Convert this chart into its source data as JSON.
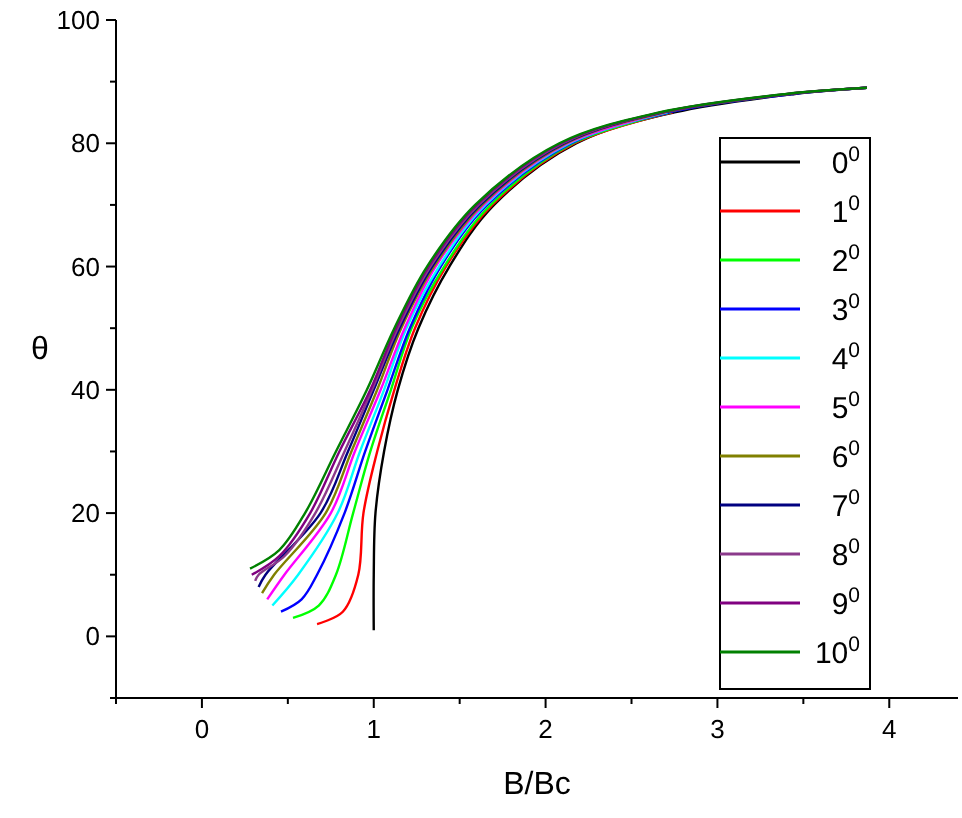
{
  "chart_data": {
    "type": "line",
    "xlabel": "B/Bc",
    "ylabel": "θ",
    "xlim": [
      -0.5,
      4.4
    ],
    "ylim": [
      -10,
      100
    ],
    "xticks": [
      {
        "value": -0.5,
        "label": null
      },
      0,
      {
        "value": 0.5,
        "label": null
      },
      1,
      {
        "value": 1.5,
        "label": null
      },
      2,
      {
        "value": 2.5,
        "label": null
      },
      3,
      {
        "value": 3.5,
        "label": null
      },
      4
    ],
    "yticks": [
      {
        "value": -10,
        "label": null
      },
      0,
      {
        "value": 10,
        "label": null
      },
      20,
      {
        "value": 30,
        "label": null
      },
      40,
      {
        "value": 50,
        "label": null
      },
      60,
      {
        "value": 70,
        "label": null
      },
      80,
      {
        "value": 90,
        "label": null
      },
      100
    ],
    "grid": false,
    "legend": "right",
    "marker": "none",
    "line_style": "solid",
    "series": [
      {
        "name": "0$^{0}$",
        "color": "#000000",
        "x": [
          1.0,
          1.0,
          1.01,
          1.06,
          1.14,
          1.26,
          1.44,
          1.7,
          2.18,
          2.75,
          3.45,
          3.87
        ],
        "values": [
          1,
          10,
          20,
          30,
          40,
          50,
          60,
          70,
          80,
          85,
          88,
          89
        ]
      },
      {
        "name": "1$^{0}$",
        "color": "#ff0000",
        "x": [
          0.67,
          0.82,
          0.91,
          0.94,
          1.02,
          1.12,
          1.24,
          1.42,
          1.69,
          2.17,
          2.74
        ],
        "values": [
          2,
          4,
          10,
          20,
          30,
          40,
          50,
          60,
          70,
          80,
          85
        ]
      },
      {
        "name": "2$^{0}$",
        "color": "#00ff00",
        "x": [
          0.53,
          0.68,
          0.78,
          0.88,
          0.98,
          1.1,
          1.22,
          1.41,
          1.68,
          2.16,
          2.73
        ],
        "values": [
          3,
          5,
          10,
          20,
          30,
          40,
          50,
          60,
          70,
          80,
          85
        ]
      },
      {
        "name": "3$^{0}$",
        "color": "#0000ff",
        "x": [
          0.46,
          0.58,
          0.67,
          0.83,
          0.95,
          1.08,
          1.21,
          1.39,
          1.66,
          2.15,
          2.72,
          3.44,
          3.87
        ],
        "values": [
          4,
          6,
          10,
          20,
          30,
          40,
          50,
          60,
          70,
          80,
          85,
          88,
          89
        ]
      },
      {
        "name": "4$^{0}$",
        "color": "#00ffff",
        "x": [
          0.41,
          0.56,
          0.79,
          0.92,
          1.06,
          1.19,
          1.38,
          1.65,
          2.14,
          2.71
        ],
        "values": [
          5,
          10,
          20,
          30,
          40,
          50,
          60,
          70,
          80,
          85
        ]
      },
      {
        "name": "5$^{0}$",
        "color": "#ff00ff",
        "x": [
          0.38,
          0.48,
          0.75,
          0.89,
          1.04,
          1.18,
          1.36,
          1.64,
          2.13,
          2.7
        ],
        "values": [
          6,
          10,
          20,
          30,
          40,
          50,
          60,
          70,
          80,
          85
        ]
      },
      {
        "name": "6$^{0}$",
        "color": "#808000",
        "x": [
          0.35,
          0.42,
          0.72,
          0.87,
          1.02,
          1.16,
          1.35,
          1.63,
          2.12,
          2.69,
          3.42,
          3.87
        ],
        "values": [
          7,
          10,
          20,
          30,
          40,
          50,
          60,
          70,
          80,
          85,
          88,
          89
        ]
      },
      {
        "name": "7$^{0}$",
        "color": "#000080",
        "x": [
          0.33,
          0.37,
          0.69,
          0.85,
          1.0,
          1.15,
          1.34,
          1.62,
          2.11,
          2.68,
          3.42,
          3.87
        ],
        "values": [
          8,
          10,
          20,
          30,
          40,
          50,
          60,
          70,
          80,
          85,
          88,
          89
        ]
      },
      {
        "name": "8$^{0}$",
        "color": "#8b3a8b",
        "x": [
          0.31,
          0.33,
          0.48,
          0.66,
          0.83,
          0.99,
          1.14,
          1.33,
          1.61,
          2.1,
          2.67,
          3.41,
          3.87
        ],
        "values": [
          9,
          10,
          13,
          20,
          30,
          40,
          50,
          60,
          70,
          80,
          85,
          88,
          89
        ]
      },
      {
        "name": "9$^{0}$",
        "color": "#800080",
        "x": [
          0.29,
          0.45,
          0.63,
          0.8,
          0.98,
          1.13,
          1.32,
          1.6,
          2.09,
          2.67,
          3.41,
          3.87
        ],
        "values": [
          10,
          13,
          20,
          30,
          40,
          50,
          60,
          70,
          80,
          85,
          88,
          89
        ]
      },
      {
        "name": "10$^{0}$",
        "color": "#008000",
        "x": [
          0.28,
          0.45,
          0.6,
          0.78,
          0.96,
          1.12,
          1.31,
          1.59,
          2.08,
          2.66,
          3.4,
          3.87
        ],
        "values": [
          11,
          14,
          20,
          30,
          40,
          50,
          60,
          70,
          80,
          85,
          88,
          89
        ]
      }
    ]
  }
}
